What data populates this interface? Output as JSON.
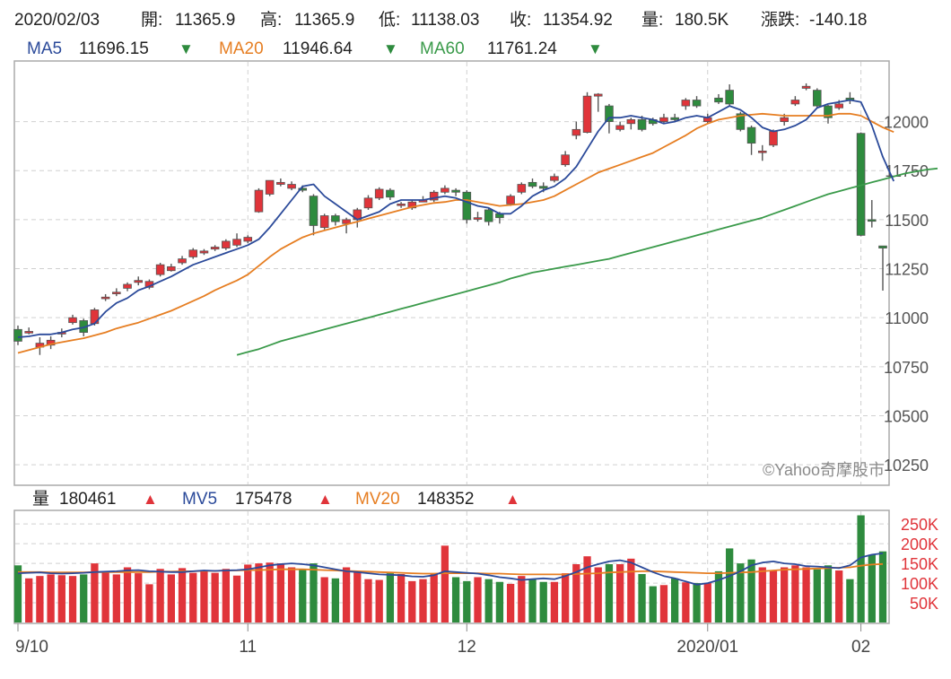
{
  "info_bar": {
    "date": "2020/02/03",
    "items": [
      {
        "label": "開:",
        "value": "11365.9"
      },
      {
        "label": "高:",
        "value": "11365.9"
      },
      {
        "label": "低:",
        "value": "11138.03"
      },
      {
        "label": "收:",
        "value": "11354.92"
      },
      {
        "label": "量:",
        "value": "180.5K"
      },
      {
        "label": "漲跌:",
        "value": "-140.18"
      }
    ]
  },
  "price_legend": [
    {
      "name": "MA5",
      "value": "11696.15",
      "arrow": "▼",
      "color": "#2b4a9a",
      "arrow_color": "#2e8b3e"
    },
    {
      "name": "MA20",
      "value": "11946.64",
      "arrow": "▼",
      "color": "#e67e22",
      "arrow_color": "#2e8b3e"
    },
    {
      "name": "MA60",
      "value": "11761.24",
      "arrow": "▼",
      "color": "#3a9a4a",
      "arrow_color": "#2e8b3e"
    }
  ],
  "volume_legend": [
    {
      "name": "量",
      "value": "180461",
      "arrow": "▲",
      "color": "#222222",
      "arrow_color": "#e0343a"
    },
    {
      "name": "MV5",
      "value": "175478",
      "arrow": "▲",
      "color": "#2b4a9a",
      "arrow_color": "#e0343a"
    },
    {
      "name": "MV20",
      "value": "148352",
      "arrow": "▲",
      "color": "#e67e22",
      "arrow_color": "#e0343a"
    }
  ],
  "watermark": "©Yahoo奇摩股市",
  "colors": {
    "up": "#e0343a",
    "down": "#2e8b3e",
    "ma5": "#2b4a9a",
    "ma20": "#e67e22",
    "ma60": "#3a9a4a",
    "grid": "#d0d0d0",
    "frame": "#aaaaaa"
  },
  "chart_data": [
    {
      "type": "candlestick",
      "title": "",
      "ylim": [
        10150,
        12300
      ],
      "y_ticks": [
        10250,
        10500,
        10750,
        11000,
        11250,
        11500,
        11750,
        12000
      ],
      "x_labels": [
        {
          "index": 0,
          "label": "9/10"
        },
        {
          "index": 21,
          "label": "11"
        },
        {
          "index": 41,
          "label": "12"
        },
        {
          "index": 63,
          "label": "2020/01"
        },
        {
          "index": 77,
          "label": "02"
        }
      ],
      "candles": [
        [
          10940,
          10880,
          10960,
          10860
        ],
        [
          10925,
          10930,
          10950,
          10915
        ],
        [
          10850,
          10870,
          10900,
          10810
        ],
        [
          10860,
          10885,
          10905,
          10840
        ],
        [
          10920,
          10925,
          10945,
          10900
        ],
        [
          10975,
          11000,
          11015,
          10965
        ],
        [
          10985,
          10925,
          10995,
          10905
        ],
        [
          10970,
          11040,
          11050,
          10960
        ],
        [
          11100,
          11105,
          11120,
          11085
        ],
        [
          11130,
          11130,
          11150,
          11110
        ],
        [
          11150,
          11170,
          11180,
          11135
        ],
        [
          11180,
          11190,
          11210,
          11165
        ],
        [
          11155,
          11185,
          11195,
          11145
        ],
        [
          11220,
          11270,
          11280,
          11210
        ],
        [
          11240,
          11260,
          11275,
          11235
        ],
        [
          11280,
          11300,
          11315,
          11270
        ],
        [
          11310,
          11345,
          11355,
          11300
        ],
        [
          11330,
          11340,
          11350,
          11320
        ],
        [
          11350,
          11360,
          11370,
          11340
        ],
        [
          11355,
          11390,
          11400,
          11345
        ],
        [
          11370,
          11400,
          11430,
          11360
        ],
        [
          11390,
          11410,
          11420,
          11380
        ],
        [
          11540,
          11650,
          11660,
          11535
        ],
        [
          11630,
          11700,
          11700,
          11620
        ],
        [
          11680,
          11690,
          11710,
          11670
        ],
        [
          11660,
          11680,
          11695,
          11650
        ],
        [
          11660,
          11650,
          11675,
          11640
        ],
        [
          11620,
          11470,
          11630,
          11420
        ],
        [
          11460,
          11520,
          11530,
          11450
        ],
        [
          11520,
          11490,
          11530,
          11470
        ],
        [
          11480,
          11500,
          11510,
          11430
        ],
        [
          11500,
          11550,
          11560,
          11460
        ],
        [
          11560,
          11610,
          11625,
          11550
        ],
        [
          11610,
          11655,
          11665,
          11600
        ],
        [
          11650,
          11615,
          11660,
          11600
        ],
        [
          11580,
          11580,
          11590,
          11560
        ],
        [
          11560,
          11590,
          11600,
          11550
        ],
        [
          11590,
          11600,
          11620,
          11590
        ],
        [
          11600,
          11640,
          11650,
          11590
        ],
        [
          11640,
          11660,
          11675,
          11630
        ],
        [
          11650,
          11640,
          11660,
          11620
        ],
        [
          11640,
          11500,
          11650,
          11480
        ],
        [
          11510,
          11510,
          11540,
          11490
        ],
        [
          11550,
          11490,
          11560,
          11470
        ],
        [
          11530,
          11510,
          11540,
          11480
        ],
        [
          11580,
          11620,
          11630,
          11570
        ],
        [
          11640,
          11680,
          11690,
          11630
        ],
        [
          11690,
          11670,
          11710,
          11660
        ],
        [
          11670,
          11660,
          11690,
          11640
        ],
        [
          11700,
          11720,
          11735,
          11690
        ],
        [
          11780,
          11830,
          11850,
          11770
        ],
        [
          11930,
          11960,
          12000,
          11910
        ],
        [
          11945,
          12130,
          12150,
          11940
        ],
        [
          12130,
          12140,
          12145,
          12050
        ],
        [
          12080,
          12000,
          12090,
          11940
        ],
        [
          11960,
          11980,
          12000,
          11950
        ],
        [
          11990,
          12010,
          12020,
          11960
        ],
        [
          12010,
          11960,
          12030,
          11950
        ],
        [
          12010,
          11990,
          12020,
          11980
        ],
        [
          12000,
          12020,
          12040,
          11990
        ],
        [
          12020,
          12010,
          12040,
          12000
        ],
        [
          12080,
          12110,
          12120,
          12060
        ],
        [
          12110,
          12080,
          12130,
          12070
        ],
        [
          12000,
          12020,
          12040,
          11990
        ],
        [
          12120,
          12100,
          12140,
          12090
        ],
        [
          12160,
          12090,
          12190,
          12080
        ],
        [
          12040,
          11960,
          12050,
          11950
        ],
        [
          11970,
          11890,
          11980,
          11830
        ],
        [
          11850,
          11850,
          11880,
          11800
        ],
        [
          11880,
          11950,
          11960,
          11870
        ],
        [
          12000,
          12020,
          12040,
          11980
        ],
        [
          12090,
          12110,
          12130,
          12080
        ],
        [
          12170,
          12180,
          12195,
          12160
        ],
        [
          12160,
          12080,
          12170,
          12070
        ],
        [
          12080,
          12020,
          12085,
          11990
        ],
        [
          12070,
          12090,
          12110,
          12060
        ],
        [
          12120,
          12110,
          12150,
          12090
        ],
        [
          11940,
          11420,
          11945,
          11415
        ],
        [
          11500,
          11495,
          11600,
          11460
        ],
        [
          11365.9,
          11354.92,
          11365.9,
          11138.03
        ]
      ],
      "ma5": {
        "start": 0,
        "values": [
          10900,
          10905,
          10915,
          10915,
          10925,
          10940,
          10950,
          10970,
          11030,
          11075,
          11100,
          11140,
          11160,
          11185,
          11210,
          11240,
          11270,
          11290,
          11310,
          11330,
          11350,
          11370,
          11400,
          11460,
          11530,
          11600,
          11670,
          11680,
          11620,
          11580,
          11540,
          11500,
          11520,
          11540,
          11580,
          11600,
          11600,
          11600,
          11610,
          11620,
          11610,
          11590,
          11570,
          11560,
          11530,
          11530,
          11570,
          11620,
          11650,
          11670,
          11710,
          11770,
          11860,
          11950,
          12020,
          12020,
          12030,
          12020,
          12010,
          11990,
          12000,
          12020,
          12030,
          12020,
          12050,
          12080,
          12060,
          12020,
          11970,
          11950,
          11960,
          11980,
          12010,
          12070,
          12090,
          12100,
          12110,
          12100,
          11980,
          11820,
          11696.15
        ]
      },
      "ma20": {
        "start": 0,
        "values": [
          10820,
          10835,
          10850,
          10865,
          10875,
          10885,
          10895,
          10910,
          10925,
          10945,
          10960,
          10975,
          10995,
          11015,
          11035,
          11060,
          11085,
          11110,
          11140,
          11165,
          11190,
          11220,
          11265,
          11310,
          11350,
          11380,
          11410,
          11430,
          11445,
          11460,
          11475,
          11490,
          11505,
          11520,
          11535,
          11550,
          11565,
          11575,
          11585,
          11590,
          11600,
          11600,
          11590,
          11580,
          11570,
          11575,
          11580,
          11590,
          11600,
          11620,
          11650,
          11680,
          11710,
          11740,
          11760,
          11780,
          11800,
          11820,
          11840,
          11870,
          11900,
          11930,
          11965,
          11990,
          12010,
          12020,
          12030,
          12035,
          12040,
          12035,
          12030,
          12030,
          12030,
          12030,
          12030,
          12040,
          12040,
          12030,
          12000,
          11970,
          11946.64
        ]
      },
      "ma60": {
        "start": 20,
        "values": [
          10810,
          10825,
          10840,
          10860,
          10880,
          10895,
          10910,
          10925,
          10940,
          10955,
          10970,
          10985,
          11000,
          11015,
          11030,
          11045,
          11060,
          11075,
          11090,
          11105,
          11120,
          11135,
          11150,
          11165,
          11180,
          11200,
          11215,
          11230,
          11240,
          11250,
          11260,
          11270,
          11280,
          11290,
          11300,
          11315,
          11330,
          11345,
          11360,
          11375,
          11390,
          11405,
          11420,
          11435,
          11450,
          11465,
          11480,
          11495,
          11510,
          11530,
          11550,
          11570,
          11590,
          11610,
          11630,
          11645,
          11660,
          11675,
          11690,
          11705,
          11720,
          11735,
          11745,
          11755,
          11761.24
        ]
      }
    },
    {
      "type": "bar",
      "title": "",
      "ylim": [
        0,
        280000
      ],
      "y_ticks": [
        50000,
        100000,
        150000,
        200000,
        250000
      ],
      "y_tick_labels": [
        "50K",
        "100K",
        "150K",
        "200K",
        "250K"
      ],
      "volume": [
        145000,
        112000,
        118000,
        122000,
        120000,
        118000,
        122000,
        150000,
        128000,
        122000,
        140000,
        125000,
        97000,
        136000,
        122000,
        138000,
        126000,
        132000,
        126000,
        136000,
        119000,
        147000,
        150000,
        152000,
        150000,
        140000,
        136000,
        150000,
        115000,
        112000,
        140000,
        128000,
        110000,
        108000,
        125000,
        123000,
        105000,
        110000,
        125000,
        195000,
        115000,
        105000,
        115000,
        110000,
        103000,
        98000,
        118000,
        110000,
        103000,
        103000,
        125000,
        148000,
        168000,
        140000,
        148000,
        148000,
        162000,
        123000,
        92000,
        95000,
        112000,
        102000,
        100000,
        100000,
        130000,
        188000,
        150000,
        160000,
        140000,
        133000,
        140000,
        145000,
        140000,
        135000,
        145000,
        132000,
        110000,
        272000,
        172000,
        180461
      ],
      "mv5": [
        125000,
        126000,
        127000,
        125000,
        124000,
        125000,
        126000,
        128000,
        129000,
        130000,
        132000,
        133000,
        130000,
        129000,
        128000,
        128000,
        130000,
        132000,
        131000,
        132000,
        133000,
        135000,
        140000,
        145000,
        148000,
        150000,
        148000,
        145000,
        140000,
        135000,
        130000,
        128000,
        125000,
        122000,
        121000,
        120000,
        117000,
        116000,
        120000,
        130000,
        128000,
        126000,
        124000,
        120000,
        115000,
        112000,
        108000,
        110000,
        112000,
        110000,
        118000,
        128000,
        140000,
        148000,
        155000,
        158000,
        152000,
        140000,
        128000,
        118000,
        112000,
        104000,
        96000,
        100000,
        108000,
        118000,
        130000,
        145000,
        152000,
        155000,
        150000,
        148000,
        143000,
        142000,
        140000,
        138000,
        145000,
        165000,
        172000,
        175478
      ],
      "mv20": [
        128000,
        128000,
        128000,
        127000,
        127000,
        127000,
        127000,
        128000,
        128000,
        128000,
        128000,
        128000,
        128000,
        129000,
        129000,
        130000,
        130000,
        131000,
        131000,
        132000,
        132000,
        133000,
        133000,
        134000,
        135000,
        135000,
        135000,
        134000,
        133000,
        132000,
        131000,
        130000,
        129000,
        128000,
        127000,
        126000,
        125000,
        124000,
        124000,
        125000,
        125000,
        125000,
        125000,
        124000,
        124000,
        123000,
        122000,
        122000,
        122000,
        122000,
        122000,
        123000,
        124000,
        125000,
        127000,
        128000,
        129000,
        130000,
        130000,
        129000,
        128000,
        127000,
        126000,
        125000,
        125000,
        126000,
        127000,
        128000,
        130000,
        132000,
        134000,
        135000,
        136000,
        137000,
        138000,
        139000,
        140000,
        144000,
        147000,
        148352
      ]
    }
  ]
}
